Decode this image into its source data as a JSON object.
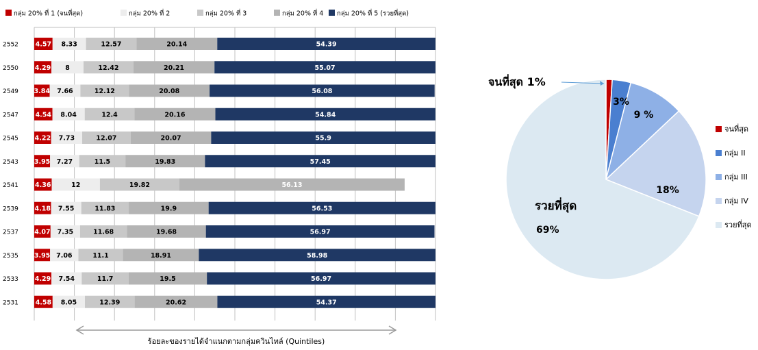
{
  "colors": {
    "q1": "#c00000",
    "q2": "#ededed",
    "q3": "#c8c8c8",
    "q4": "#b4b4b4",
    "q5": "#1f3864",
    "pie_poorest": "#c00000",
    "pie_g2": "#4a7fd0",
    "pie_g3": "#8eb0e6",
    "pie_g4": "#c5d4ee",
    "pie_richest": "#dce9f2"
  },
  "chart_data": [
    {
      "type": "bar",
      "stacked": true,
      "orientation": "horizontal",
      "legend_position": "top",
      "series": [
        {
          "name": "กลุ่ม 20% ที่ 1 (จนที่สุด)",
          "values": [
            4.57,
            4.29,
            3.84,
            4.54,
            4.22,
            3.95,
            4.36,
            4.18,
            4.07,
            3.95,
            4.29,
            4.58
          ]
        },
        {
          "name": "กลุ่ม 20% ที่ 2",
          "values": [
            8.33,
            8,
            7.66,
            8.04,
            7.73,
            7.27,
            12,
            7.55,
            7.35,
            7.06,
            7.54,
            8.05
          ]
        },
        {
          "name": "กลุ่ม 20% ที่ 3",
          "values": [
            12.57,
            12.42,
            12.12,
            12.4,
            12.07,
            11.5,
            19.82,
            11.83,
            11.68,
            11.1,
            11.7,
            12.39
          ]
        },
        {
          "name": "กลุ่ม 20% ที่ 4",
          "values": [
            20.14,
            20.21,
            20.08,
            20.16,
            20.07,
            19.83,
            56.13,
            19.9,
            19.68,
            18.91,
            19.5,
            20.62
          ]
        },
        {
          "name": "กลุ่ม 20% ที่ 5 (รวยที่สุด)",
          "values": [
            54.39,
            55.07,
            56.08,
            54.84,
            55.9,
            57.45,
            null,
            56.53,
            56.97,
            58.98,
            56.97,
            54.37
          ]
        }
      ],
      "display_labels": [
        [
          "4.57",
          "8.33",
          "12.57",
          "20.14",
          "54.39"
        ],
        [
          "4.29",
          "8",
          "12.42",
          "20.21",
          "55.07"
        ],
        [
          "3.84",
          "7.66",
          "12.12",
          "20.08",
          "56.08"
        ],
        [
          "4.54",
          "8.04",
          "12.4",
          "20.16",
          "54.84"
        ],
        [
          "4.22",
          "7.73",
          "12.07",
          "20.07",
          "55.9"
        ],
        [
          "3.95",
          "7.27",
          "11.5",
          "19.83",
          "57.45"
        ],
        [
          "4.36",
          "12",
          "19.82",
          "56.13",
          ""
        ],
        [
          "4.18",
          "7.55",
          "11.83",
          "19.9",
          "56.53"
        ],
        [
          "4.07",
          "7.35",
          "11.68",
          "19.68",
          "56.97"
        ],
        [
          "3.95",
          "7.06",
          "11.1",
          "18.91",
          "58.98"
        ],
        [
          "4.29",
          "7.54",
          "11.7",
          "19.5",
          "56.97"
        ],
        [
          "4.58",
          "8.05",
          "12.39",
          "20.62",
          "54.37"
        ]
      ],
      "categories": [
        "2552",
        "2550",
        "2549",
        "2547",
        "2545",
        "2543",
        "2541",
        "2539",
        "2537",
        "2535",
        "2533",
        "2531"
      ],
      "xlabel": "ร้อยละของรายได้จำแนกตามกลุ่มควินไทล์ (Quintiles)",
      "xlim": [
        0,
        100
      ],
      "grid": true
    },
    {
      "type": "pie",
      "legend_position": "right",
      "slices": [
        {
          "name": "จนที่สุด",
          "value": 1,
          "label": "จนที่สุด 1%"
        },
        {
          "name": "กลุ่ม II",
          "value": 3,
          "label": "3%"
        },
        {
          "name": "กลุ่ม III",
          "value": 9,
          "label": "9 %"
        },
        {
          "name": "กลุ่ม IV",
          "value": 18,
          "label": "18%"
        },
        {
          "name": "รวยที่สุด",
          "value": 69,
          "label": "รวยที่สุด",
          "label2": "69%"
        }
      ]
    }
  ]
}
